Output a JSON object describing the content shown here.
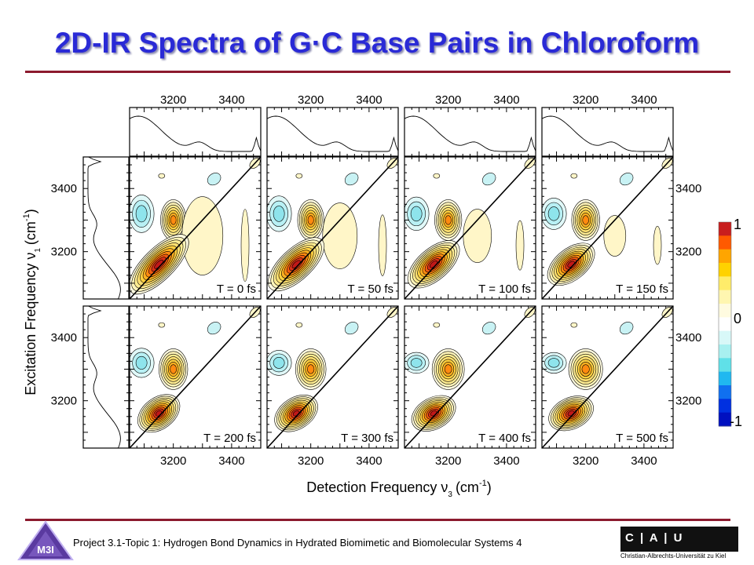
{
  "slide": {
    "title": "2D-IR Spectra of G·C Base Pairs in Chloroform",
    "footer": "Project 3.1-Topic 1: Hydrogen Bond Dynamics in Hydrated Biomimetic and Biomolecular Systems 4",
    "logo_left_text": "M3I",
    "logo_right_letters": "C | A | U",
    "logo_right_sub": "Christian-Albrechts-Universität zu Kiel",
    "accent_color": "#2a2ad6",
    "rule_color": "#8c1a2e"
  },
  "chart_data": {
    "type": "heatmap",
    "title": "2D-IR Spectra of G·C Base Pairs in Chloroform",
    "xlabel": "Detection Frequency",
    "xlabel_symbol": "ν",
    "xlabel_sub": "3",
    "xlabel_unit_open": "(cm",
    "xlabel_unit_sup": "-1",
    "xlabel_unit_close": ")",
    "ylabel": "Excitation Frequency",
    "ylabel_symbol": "ν",
    "ylabel_sub": "1",
    "ylabel_unit_open": "(cm",
    "ylabel_unit_sup": "-1",
    "ylabel_unit_close": ")",
    "xlim": [
      3050,
      3500
    ],
    "ylim": [
      3050,
      3500
    ],
    "x_ticks": [
      3200,
      3400
    ],
    "y_ticks": [
      3200,
      3400
    ],
    "x_tick_labels": [
      "3200",
      "3400"
    ],
    "y_tick_labels": [
      "3200",
      "3400"
    ],
    "waiting_times_fs": [
      0,
      50,
      100,
      150,
      200,
      300,
      400,
      500
    ],
    "panel_labels": [
      "T = 0 fs",
      "T = 50 fs",
      "T = 100 fs",
      "T = 150 fs",
      "T = 200 fs",
      "T = 300 fs",
      "T = 400 fs",
      "T = 500 fs"
    ],
    "grid_layout": "2 rows x 4 columns",
    "colorbar": {
      "max_label": "1",
      "zero_label": "0",
      "min_label": "-1",
      "range": [
        -1,
        1
      ],
      "colors": [
        "#c81e1e",
        "#ff5a00",
        "#ffa500",
        "#ffd200",
        "#ffec6a",
        "#fff6b0",
        "#fffbe0",
        "#ffffff",
        "#d8f8f8",
        "#a8f0f0",
        "#60e0e8",
        "#20b8f0",
        "#1070f0",
        "#0030e0",
        "#0010c0"
      ]
    },
    "peaks": [
      {
        "name": "main positive",
        "x": 3150,
        "y": 3160,
        "sign": "positive",
        "amplitude": 1.0
      },
      {
        "name": "upper positive",
        "x": 3200,
        "y": 3300,
        "sign": "positive",
        "amplitude": 0.55
      },
      {
        "name": "negative band",
        "x": 3080,
        "y": 3320,
        "sign": "negative",
        "amplitude": -0.3
      },
      {
        "name": "high-frequency diagonal",
        "x": 3480,
        "y": 3480,
        "sign": "positive",
        "amplitude": 0.2
      }
    ],
    "linear_spectrum_note": "1D absorption spectra shown above each column and left of each row",
    "legend_position": "right"
  }
}
